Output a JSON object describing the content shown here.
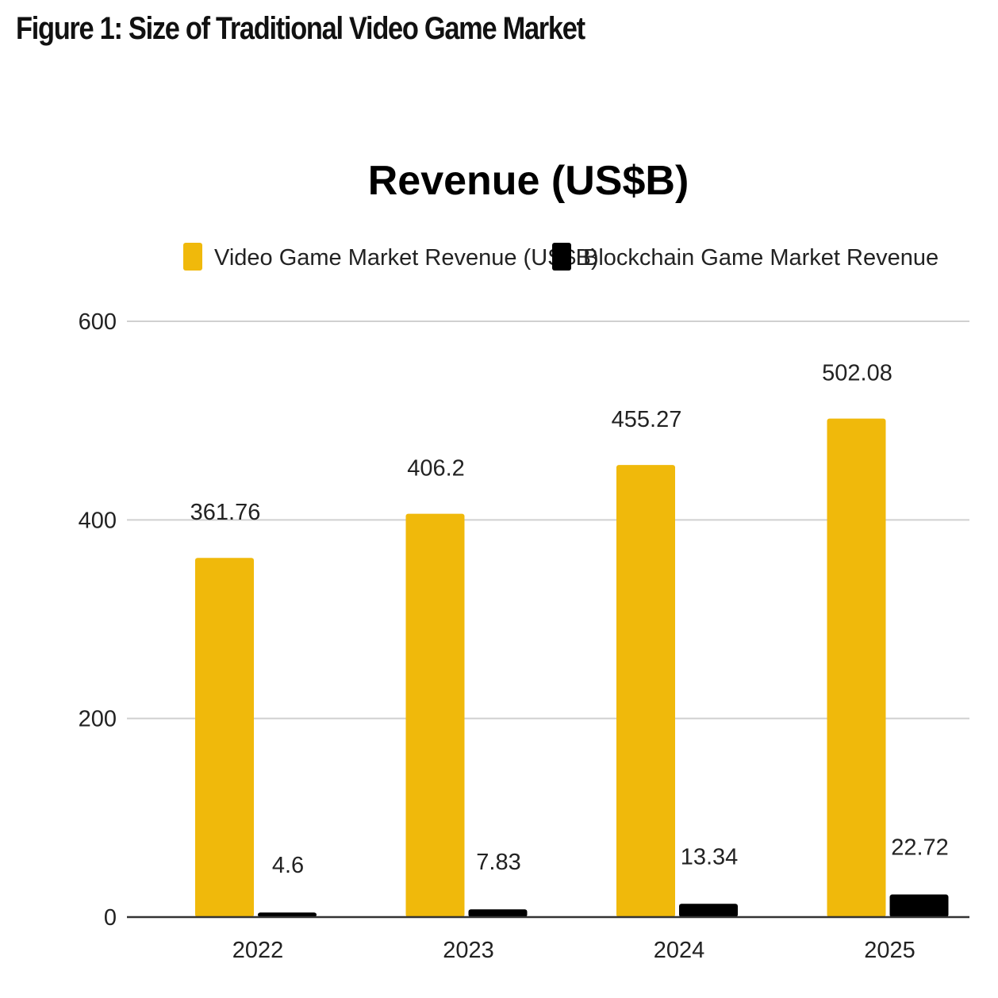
{
  "figure_title": "Figure 1: Size of Traditional Video Game Market",
  "colors": {
    "video_game": "#F0B90B",
    "blockchain": "#000000",
    "grid": "#d0d0d0",
    "axis": "#333333"
  },
  "chart_data": {
    "type": "bar",
    "title": "Revenue (US$B)",
    "xlabel": "",
    "ylabel": "",
    "categories": [
      "2022",
      "2023",
      "2024",
      "2025"
    ],
    "series": [
      {
        "name": "Video Game Market Revenue (US$B)",
        "values": [
          361.76,
          406.2,
          455.27,
          502.08
        ],
        "labels": [
          "361.76",
          "406.2",
          "455.27",
          "502.08"
        ]
      },
      {
        "name": "Blockchain Game Market Revenue",
        "values": [
          4.6,
          7.83,
          13.34,
          22.72
        ],
        "labels": [
          "4.6",
          "7.83",
          "13.34",
          "22.72"
        ]
      }
    ],
    "ylim": [
      0,
      600
    ],
    "yticks": [
      0,
      200,
      400,
      600
    ],
    "ytick_labels": [
      "0",
      "200",
      "400",
      "600"
    ],
    "grid": true,
    "legend": "top-center"
  }
}
